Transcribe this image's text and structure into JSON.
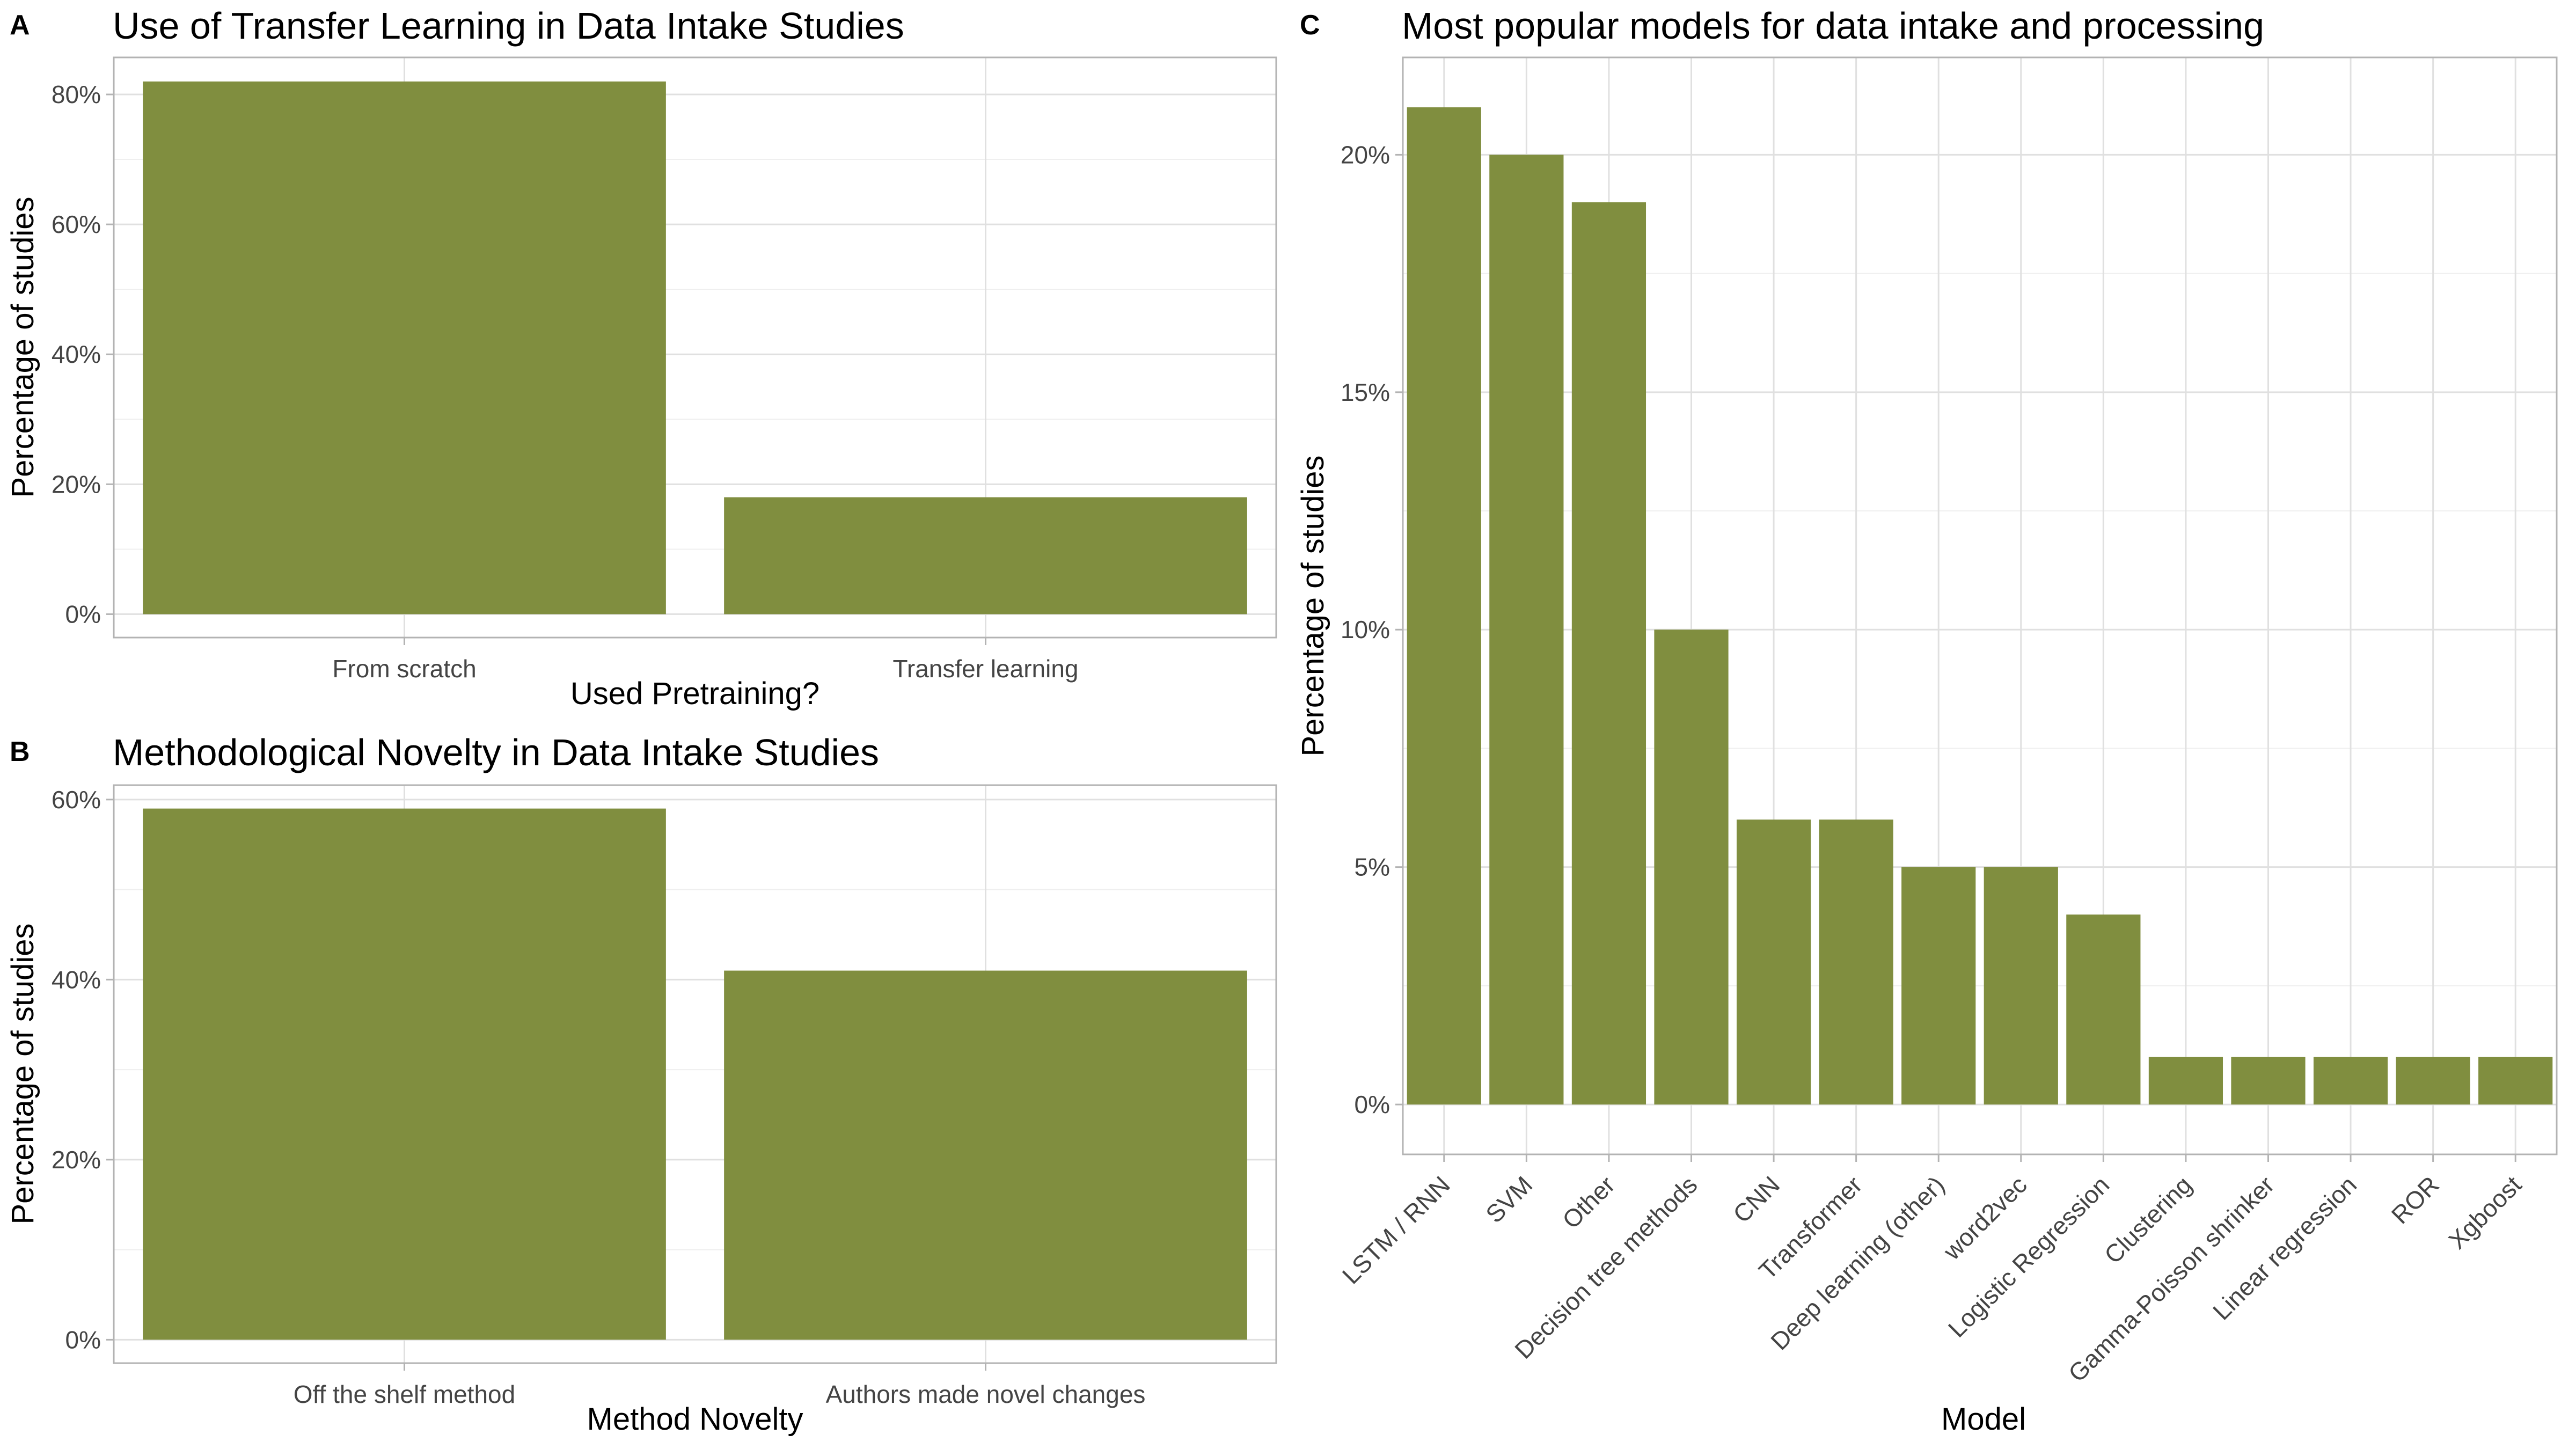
{
  "colors": {
    "bar": "#808e3f"
  },
  "panels": [
    {
      "tag": "A",
      "title": "Use of Transfer Learning in Data Intake Studies",
      "xlabel": "Used Pretraining?",
      "ylabel": "Percentage of studies",
      "y_ticks": [
        "0%",
        "20%",
        "40%",
        "60%",
        "80%"
      ]
    },
    {
      "tag": "B",
      "title": "Methodological Novelty in Data Intake Studies",
      "xlabel": "Method Novelty",
      "ylabel": "Percentage of studies",
      "y_ticks": [
        "0%",
        "20%",
        "40%",
        "60%"
      ]
    },
    {
      "tag": "C",
      "title": "Most popular models for data intake and processing",
      "xlabel": "Model",
      "ylabel": "Percentage of studies",
      "y_ticks": [
        "0%",
        "5%",
        "10%",
        "15%",
        "20%"
      ]
    }
  ],
  "chart_data": [
    {
      "type": "bar",
      "title": "Use of Transfer Learning in Data Intake Studies",
      "xlabel": "Used Pretraining?",
      "ylabel": "Percentage of studies",
      "categories": [
        "From scratch",
        "Transfer learning"
      ],
      "values": [
        82,
        18
      ],
      "ylim": [
        -3.6,
        85.7
      ],
      "yticks": [
        0,
        20,
        40,
        60,
        80
      ],
      "grid": true
    },
    {
      "type": "bar",
      "title": "Methodological Novelty in Data Intake Studies",
      "xlabel": "Method Novelty",
      "ylabel": "Percentage of studies",
      "categories": [
        "Off the shelf method",
        "Authors made novel changes"
      ],
      "values": [
        59,
        41
      ],
      "ylim": [
        -2.6,
        61.6
      ],
      "yticks": [
        0,
        20,
        40,
        60
      ],
      "grid": true
    },
    {
      "type": "bar",
      "title": "Most popular models for data intake and processing",
      "xlabel": "Model",
      "ylabel": "Percentage of studies",
      "categories": [
        "LSTM / RNN",
        "SVM",
        "Other",
        "Decision tree methods",
        "CNN",
        "Transformer",
        "Deep learning (other)",
        "word2vec",
        "Logistic Regression",
        "Clustering",
        "Gamma-Poisson shrinker",
        "Linear regression",
        "ROR",
        "Xgboost"
      ],
      "values": [
        21,
        20,
        19,
        10,
        6,
        6,
        5,
        5,
        4,
        1,
        1,
        1,
        1,
        1
      ],
      "ylim": [
        -1.05,
        22.05
      ],
      "yticks": [
        0,
        5,
        10,
        15,
        20
      ],
      "grid": true
    }
  ]
}
